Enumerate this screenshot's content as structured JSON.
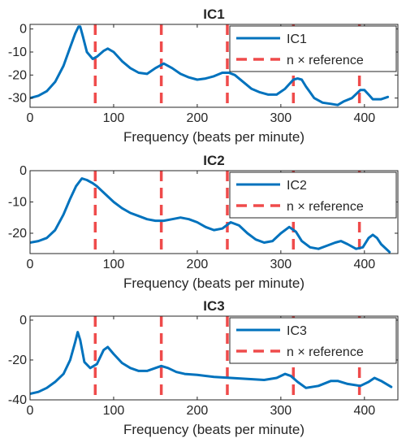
{
  "chart_data": [
    {
      "type": "line",
      "title": "IC1",
      "xlabel": "Frequency (beats per minute)",
      "ylabel": "",
      "xlim": [
        0,
        440
      ],
      "ylim": [
        -34,
        2
      ],
      "xticks": [
        0,
        100,
        200,
        300,
        400
      ],
      "yticks": [
        0,
        -10,
        -20,
        -30
      ],
      "xtick_labels": [
        "0",
        "100",
        "200",
        "300",
        "400"
      ],
      "ytick_labels": [
        "0",
        "-10",
        "-20",
        "-30"
      ],
      "reference_lines": [
        78,
        157,
        236,
        315,
        394
      ],
      "legend": {
        "position": "top-right",
        "entries": [
          "IC1",
          "n × reference"
        ]
      },
      "series": [
        {
          "name": "IC1",
          "x": [
            0,
            10,
            20,
            30,
            40,
            48,
            54,
            58,
            60,
            63,
            68,
            75,
            80,
            88,
            93,
            100,
            110,
            120,
            130,
            140,
            150,
            160,
            170,
            180,
            190,
            200,
            210,
            220,
            230,
            238,
            245,
            255,
            265,
            275,
            285,
            295,
            305,
            315,
            320,
            325,
            330,
            340,
            350,
            360,
            368,
            375,
            385,
            395,
            400,
            405,
            410,
            420,
            428
          ],
          "y": [
            -30,
            -29,
            -27,
            -23,
            -16,
            -8,
            -2,
            1,
            1,
            -3,
            -10,
            -13,
            -12,
            -9.5,
            -8.5,
            -10,
            -14,
            -17,
            -19,
            -19.5,
            -17,
            -15,
            -17,
            -19.5,
            -21,
            -22,
            -21.5,
            -20.5,
            -19,
            -19,
            -20,
            -23,
            -26,
            -27.5,
            -28.5,
            -28.5,
            -26,
            -22,
            -21.5,
            -22,
            -25,
            -30,
            -32,
            -32.5,
            -33,
            -31.5,
            -30,
            -26.5,
            -26.5,
            -28.5,
            -30.5,
            -30.5,
            -29.5
          ]
        }
      ]
    },
    {
      "type": "line",
      "title": "IC2",
      "xlabel": "Frequency (beats per minute)",
      "ylabel": "",
      "xlim": [
        0,
        440
      ],
      "ylim": [
        -26.5,
        0
      ],
      "xticks": [
        0,
        100,
        200,
        300,
        400
      ],
      "yticks": [
        0,
        -10,
        -20
      ],
      "xtick_labels": [
        "0",
        "100",
        "200",
        "300",
        "400"
      ],
      "ytick_labels": [
        "0",
        "-10",
        "-20"
      ],
      "reference_lines": [
        78,
        157,
        236,
        315,
        394
      ],
      "legend": {
        "position": "top-right",
        "entries": [
          "IC2",
          "n × reference"
        ]
      },
      "series": [
        {
          "name": "IC2",
          "x": [
            0,
            10,
            20,
            30,
            40,
            48,
            55,
            62,
            68,
            75,
            80,
            90,
            100,
            110,
            120,
            130,
            140,
            150,
            160,
            170,
            180,
            190,
            200,
            210,
            220,
            230,
            240,
            250,
            260,
            270,
            280,
            290,
            300,
            310,
            318,
            325,
            335,
            345,
            355,
            365,
            372,
            380,
            390,
            398,
            405,
            410,
            415,
            420,
            430
          ],
          "y": [
            -23,
            -22.5,
            -21.5,
            -19,
            -14,
            -9,
            -5,
            -2.5,
            -3,
            -4,
            -5,
            -7.5,
            -10,
            -12,
            -13.5,
            -14.5,
            -15.5,
            -16,
            -16,
            -15.5,
            -15,
            -15.5,
            -16.5,
            -18,
            -19,
            -18.5,
            -16.5,
            -17.5,
            -20,
            -22,
            -23,
            -22.5,
            -20,
            -18,
            -19.5,
            -22.5,
            -24.5,
            -25,
            -24,
            -23,
            -22.5,
            -23.5,
            -25,
            -24.5,
            -21.5,
            -20.5,
            -21.5,
            -23.5,
            -26
          ]
        }
      ]
    },
    {
      "type": "line",
      "title": "IC3",
      "xlabel": "Frequency (beats per minute)",
      "ylabel": "",
      "xlim": [
        0,
        440
      ],
      "ylim": [
        -40,
        2
      ],
      "xticks": [
        0,
        100,
        200,
        300,
        400
      ],
      "yticks": [
        0,
        -20,
        -40
      ],
      "xtick_labels": [
        "0",
        "100",
        "200",
        "300",
        "400"
      ],
      "ytick_labels": [
        "0",
        "-20",
        "-40"
      ],
      "reference_lines": [
        78,
        157,
        236,
        315,
        394
      ],
      "legend": {
        "position": "top-right",
        "entries": [
          "IC3",
          "n × reference"
        ]
      },
      "series": [
        {
          "name": "IC3",
          "x": [
            0,
            10,
            20,
            30,
            40,
            48,
            54,
            57,
            60,
            65,
            72,
            80,
            88,
            93,
            100,
            110,
            120,
            130,
            140,
            150,
            157,
            165,
            175,
            185,
            200,
            220,
            240,
            260,
            280,
            295,
            305,
            312,
            320,
            330,
            345,
            360,
            368,
            380,
            395,
            405,
            412,
            420,
            432
          ],
          "y": [
            -37,
            -36,
            -34,
            -31,
            -27,
            -20,
            -11,
            -6,
            -10,
            -21,
            -24,
            -22,
            -15,
            -13.5,
            -17,
            -21.5,
            -24,
            -25.5,
            -25.5,
            -24,
            -23,
            -24,
            -26,
            -27,
            -27.5,
            -28.5,
            -29,
            -29.5,
            -30,
            -29,
            -27,
            -28,
            -31,
            -34,
            -33,
            -30.5,
            -30.5,
            -32,
            -33,
            -31,
            -29,
            -30.5,
            -33.5
          ]
        }
      ]
    }
  ],
  "colors": {
    "series": "#0072BD",
    "reference": "#EF4B4B",
    "axes": "#262626",
    "text": "#262626"
  },
  "legend_reference_label": "n × reference"
}
